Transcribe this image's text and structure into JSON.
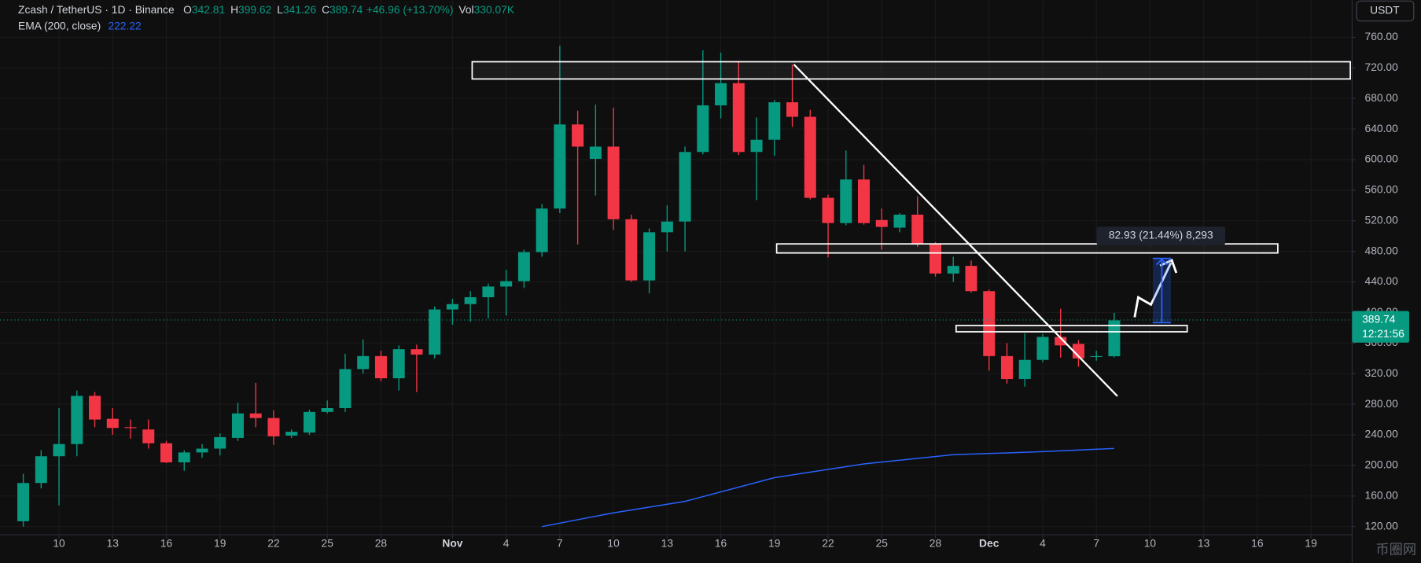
{
  "chart_data": {
    "type": "candlestick",
    "title": "Zcash / TetherUS · 1D · Binance",
    "header": {
      "labels": [
        "O",
        "H",
        "L",
        "C"
      ],
      "change": "+46.96 (+13.70%)",
      "volume_label": "Vol",
      "volume": "330.07K"
    },
    "up_color": "#089981",
    "down_color": "#f23645",
    "x": [
      8,
      9,
      10,
      11,
      12,
      13,
      14,
      15,
      16,
      17,
      18,
      19,
      20,
      21,
      22,
      23,
      24,
      25,
      26,
      27,
      28,
      29,
      30,
      31,
      32,
      33,
      34,
      35,
      36,
      37,
      38,
      39,
      40,
      41,
      42,
      43,
      44,
      45,
      46,
      47,
      48,
      49,
      50,
      51,
      52,
      53,
      54,
      55,
      56,
      57,
      58,
      59,
      60,
      61,
      62,
      63,
      64,
      65,
      66,
      67,
      68,
      69
    ],
    "open": [
      127,
      177,
      212,
      228,
      291,
      261,
      250,
      247,
      229,
      204,
      217,
      222,
      236,
      268,
      262,
      239,
      243,
      270,
      275,
      326,
      343,
      314,
      352,
      345,
      404,
      411,
      420,
      434,
      441,
      479,
      536,
      646,
      601,
      617,
      522,
      442,
      505,
      519,
      610,
      671,
      700,
      610,
      626,
      675,
      656,
      550,
      517,
      574,
      521,
      511,
      528,
      490,
      451,
      461,
      428,
      343,
      313,
      338,
      368,
      359,
      342,
      342.81
    ],
    "high": [
      189,
      220,
      275,
      298,
      296,
      275,
      260,
      260,
      232,
      220,
      228,
      242,
      282,
      308,
      272,
      247,
      273,
      285,
      346,
      365,
      350,
      357,
      358,
      408,
      418,
      428,
      438,
      456,
      482,
      542,
      749,
      664,
      672,
      668,
      528,
      510,
      540,
      617,
      743,
      740,
      728,
      655,
      678,
      724,
      665,
      554,
      612,
      593,
      536,
      530,
      552,
      492,
      473,
      468,
      430,
      360,
      373,
      372,
      405,
      364,
      350,
      399.62
    ],
    "low": [
      120,
      170,
      148,
      212,
      250,
      240,
      235,
      222,
      203,
      193,
      210,
      213,
      232,
      250,
      227,
      236,
      240,
      268,
      270,
      320,
      310,
      298,
      296,
      340,
      384,
      388,
      392,
      396,
      432,
      473,
      530,
      489,
      553,
      508,
      440,
      425,
      480,
      480,
      607,
      654,
      606,
      547,
      605,
      643,
      548,
      472,
      514,
      515,
      482,
      505,
      486,
      447,
      440,
      426,
      324,
      307,
      303,
      335,
      341,
      329,
      337,
      341.26
    ],
    "close": [
      177,
      212,
      228,
      291,
      260,
      249,
      249,
      229,
      204,
      217,
      222,
      237,
      268,
      262,
      238,
      244,
      270,
      275,
      326,
      343,
      314,
      352,
      345,
      404,
      411,
      420,
      434,
      441,
      479,
      536,
      646,
      617,
      617,
      522,
      442,
      505,
      519,
      610,
      671,
      700,
      610,
      626,
      675,
      656,
      550,
      517,
      574,
      517,
      512,
      528,
      490,
      451,
      461,
      428,
      343,
      313,
      338,
      368,
      357,
      340,
      343,
      389.74
    ],
    "ema": {
      "name": "EMA (200, close)",
      "color": "#2962ff",
      "x": [
        37,
        41,
        45,
        50,
        55,
        60,
        65,
        69
      ],
      "values": [
        120,
        138,
        153,
        184,
        202,
        214,
        218,
        222.22
      ]
    },
    "xlim": [
      6.7,
      82.3
    ],
    "xticks": [
      {
        "value": 10,
        "label": "10"
      },
      {
        "value": 13,
        "label": "13"
      },
      {
        "value": 16,
        "label": "16"
      },
      {
        "value": 19,
        "label": "19"
      },
      {
        "value": 22,
        "label": "22"
      },
      {
        "value": 25,
        "label": "25"
      },
      {
        "value": 28,
        "label": "28"
      },
      {
        "value": 32,
        "label": "Nov"
      },
      {
        "value": 35,
        "label": "4"
      },
      {
        "value": 38,
        "label": "7"
      },
      {
        "value": 41,
        "label": "10"
      },
      {
        "value": 44,
        "label": "13"
      },
      {
        "value": 47,
        "label": "16"
      },
      {
        "value": 50,
        "label": "19"
      },
      {
        "value": 53,
        "label": "22"
      },
      {
        "value": 56,
        "label": "25"
      },
      {
        "value": 59,
        "label": "28"
      },
      {
        "value": 62,
        "label": "Dec"
      },
      {
        "value": 65,
        "label": "4"
      },
      {
        "value": 68,
        "label": "7"
      },
      {
        "value": 71,
        "label": "10"
      },
      {
        "value": 74,
        "label": "13"
      },
      {
        "value": 77,
        "label": "16"
      },
      {
        "value": 80,
        "label": "19"
      }
    ],
    "ylim": [
      109.3,
      808.6
    ],
    "yticks": [
      {
        "value": 760,
        "label": "760.00"
      },
      {
        "value": 720,
        "label": "720.00"
      },
      {
        "value": 680,
        "label": "680.00"
      },
      {
        "value": 640,
        "label": "640.00"
      },
      {
        "value": 600,
        "label": "600.00"
      },
      {
        "value": 560,
        "label": "560.00"
      },
      {
        "value": 520,
        "label": "520.00"
      },
      {
        "value": 480,
        "label": "480.00"
      },
      {
        "value": 440,
        "label": "440.00"
      },
      {
        "value": 400,
        "label": "400.00"
      },
      {
        "value": 360,
        "label": "360.00"
      },
      {
        "value": 320,
        "label": "320.00"
      },
      {
        "value": 280,
        "label": "280.00"
      },
      {
        "value": 240,
        "label": "240.00"
      },
      {
        "value": 200,
        "label": "200.00"
      },
      {
        "value": 160,
        "label": "160.00"
      },
      {
        "value": 120,
        "label": "120.00"
      }
    ],
    "grid": true,
    "currency": "USDT",
    "countdown": "12:21:56",
    "measure_label": "82.93 (21.44%) 8,293",
    "watermark": "币圈网"
  }
}
